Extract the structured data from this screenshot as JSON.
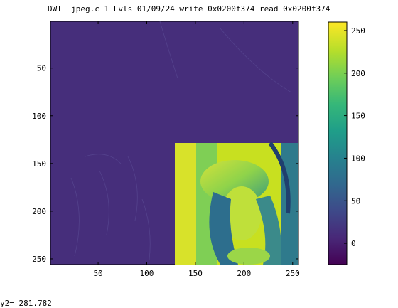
{
  "title": "DWT  jpeg.c 1 Lvls 01/09/24 write 0x0200f374 read 0x0200f374",
  "status_text": "y2= 281.782",
  "chart_data": [
    {
      "type": "heatmap",
      "title": "DWT  jpeg.c 1 Lvls 01/09/24 write 0x0200f374 read 0x0200f374",
      "colormap": "viridis",
      "x_ticks": [
        50,
        100,
        150,
        200,
        250
      ],
      "y_ticks": [
        50,
        100,
        150,
        200,
        250
      ],
      "xlim": [
        1,
        256
      ],
      "ylim": [
        256,
        1
      ],
      "background_value": 10,
      "ll_band_description": "LL subband (top-left quadrant region of image at columns 129-256, rows 129-256) contains high-intensity downscaled image"
    },
    {
      "type": "colorbar",
      "ticks": [
        0,
        50,
        100,
        150,
        200,
        250
      ],
      "range": [
        -25,
        260
      ],
      "colors": [
        "#440154",
        "#482878",
        "#3e4989",
        "#31688e",
        "#26828e",
        "#1f9e89",
        "#35b779",
        "#6ece58",
        "#b5de2b",
        "#fde725"
      ]
    }
  ]
}
